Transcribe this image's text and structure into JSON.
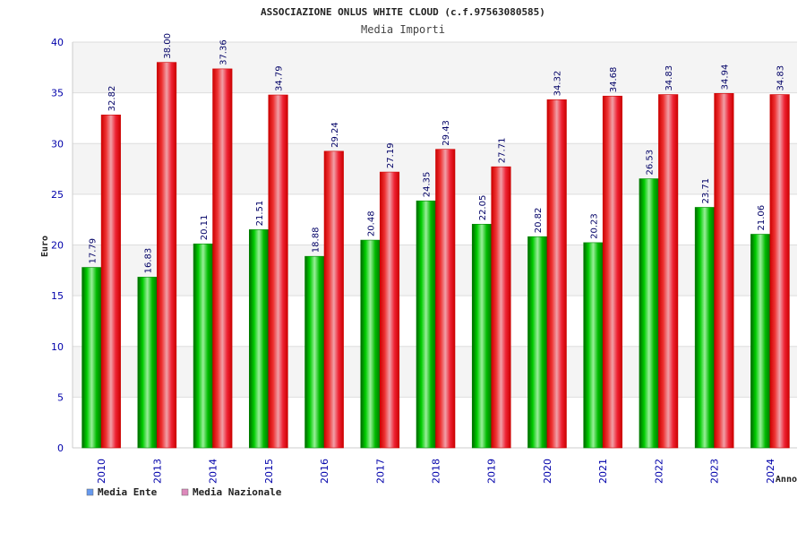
{
  "chart_data": {
    "type": "bar",
    "title": "ASSOCIAZIONE ONLUS WHITE CLOUD (c.f.97563080585)",
    "subtitle": "Media Importi",
    "xlabel": "Anno",
    "ylabel": "Euro",
    "ylim": [
      0,
      40
    ],
    "yticks": [
      0,
      5,
      10,
      15,
      20,
      25,
      30,
      35,
      40
    ],
    "grid": true,
    "legend_position": "bottom-left",
    "categories": [
      "2010",
      "2013",
      "2014",
      "2015",
      "2016",
      "2017",
      "2018",
      "2019",
      "2020",
      "2021",
      "2022",
      "2023",
      "2024"
    ],
    "series": [
      {
        "name": "Media Ente",
        "values": [
          17.79,
          16.83,
          20.11,
          21.51,
          18.88,
          20.48,
          24.35,
          22.05,
          20.82,
          20.23,
          26.53,
          23.71,
          21.06
        ],
        "color": "#00aa00",
        "legend_color": "#6699ee"
      },
      {
        "name": "Media Nazionale",
        "values": [
          32.82,
          38.0,
          37.36,
          34.79,
          29.24,
          27.19,
          29.43,
          27.71,
          34.32,
          34.68,
          34.83,
          34.94,
          34.83
        ],
        "labels": [
          "32.82",
          "38.00",
          "37.36",
          "34.79",
          "29.24",
          "27.19",
          "29.43",
          "27.71",
          "34.32",
          "34.68",
          "34.83",
          "34.94",
          "34.83"
        ],
        "color": "#ee0000",
        "legend_color": "#dd88bb"
      }
    ]
  }
}
